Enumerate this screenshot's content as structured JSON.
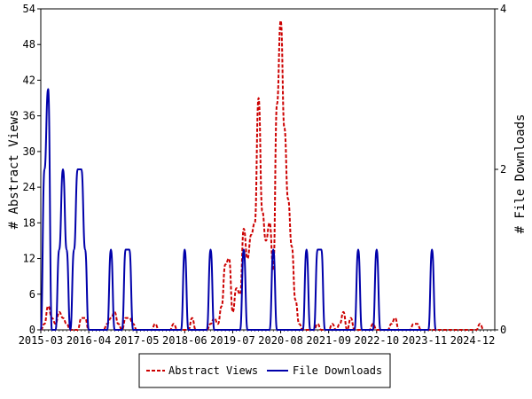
{
  "chart_data": {
    "type": "line",
    "y_left": {
      "label": "# Abstract Views",
      "min": 0,
      "max": 54,
      "ticks": [
        0,
        6,
        12,
        18,
        24,
        30,
        36,
        42,
        48,
        54
      ]
    },
    "y_right": {
      "label": "# File Downloads",
      "min": 0,
      "max": 4,
      "ticks": [
        0,
        2,
        4
      ]
    },
    "x_axis": {
      "start": "2015-03",
      "end": "2025-06",
      "tick_labels": [
        "2015-03",
        "2016-04",
        "2017-05",
        "2018-06",
        "2019-07",
        "2020-08",
        "2021-09",
        "2022-10",
        "2023-11",
        "2024-12"
      ]
    },
    "legend_position": "bottom",
    "series": [
      {
        "name": "Abstract Views",
        "axis": "left",
        "color": "#cc0000",
        "dash": true,
        "points": [
          [
            "2015-03",
            0
          ],
          [
            "2015-04",
            1
          ],
          [
            "2015-05",
            4
          ],
          [
            "2015-06",
            2
          ],
          [
            "2015-07",
            1
          ],
          [
            "2015-08",
            3
          ],
          [
            "2015-09",
            2
          ],
          [
            "2015-10",
            1
          ],
          [
            "2015-11",
            0
          ],
          [
            "2016-01",
            0
          ],
          [
            "2016-02",
            2
          ],
          [
            "2016-03",
            2
          ],
          [
            "2016-04",
            0
          ],
          [
            "2016-05",
            0
          ],
          [
            "2016-08",
            0
          ],
          [
            "2016-09",
            1
          ],
          [
            "2016-10",
            2
          ],
          [
            "2016-11",
            3
          ],
          [
            "2016-12",
            1
          ],
          [
            "2017-01",
            0
          ],
          [
            "2017-02",
            2
          ],
          [
            "2017-03",
            2
          ],
          [
            "2017-04",
            1
          ],
          [
            "2017-05",
            0
          ],
          [
            "2017-09",
            0
          ],
          [
            "2017-10",
            1
          ],
          [
            "2017-11",
            0
          ],
          [
            "2018-02",
            0
          ],
          [
            "2018-03",
            1
          ],
          [
            "2018-04",
            0
          ],
          [
            "2018-07",
            0
          ],
          [
            "2018-08",
            2
          ],
          [
            "2018-09",
            0
          ],
          [
            "2018-12",
            0
          ],
          [
            "2019-01",
            1
          ],
          [
            "2019-02",
            2
          ],
          [
            "2019-03",
            1
          ],
          [
            "2019-04",
            4
          ],
          [
            "2019-05",
            11
          ],
          [
            "2019-06",
            12
          ],
          [
            "2019-07",
            3
          ],
          [
            "2019-08",
            7
          ],
          [
            "2019-09",
            6
          ],
          [
            "2019-10",
            17
          ],
          [
            "2019-11",
            12
          ],
          [
            "2019-12",
            16
          ],
          [
            "2020-01",
            18
          ],
          [
            "2020-02",
            39
          ],
          [
            "2020-03",
            20
          ],
          [
            "2020-04",
            15
          ],
          [
            "2020-05",
            18
          ],
          [
            "2020-06",
            10
          ],
          [
            "2020-07",
            38
          ],
          [
            "2020-08",
            52
          ],
          [
            "2020-09",
            34
          ],
          [
            "2020-10",
            22
          ],
          [
            "2020-11",
            14
          ],
          [
            "2020-12",
            5
          ],
          [
            "2021-01",
            1
          ],
          [
            "2021-02",
            0
          ],
          [
            "2021-05",
            0
          ],
          [
            "2021-06",
            1
          ],
          [
            "2021-07",
            0
          ],
          [
            "2021-09",
            0
          ],
          [
            "2021-10",
            1
          ],
          [
            "2021-11",
            0
          ],
          [
            "2021-12",
            1
          ],
          [
            "2022-01",
            3
          ],
          [
            "2022-02",
            0
          ],
          [
            "2022-03",
            2
          ],
          [
            "2022-04",
            0
          ],
          [
            "2022-08",
            0
          ],
          [
            "2022-09",
            1
          ],
          [
            "2022-10",
            0
          ],
          [
            "2023-01",
            0
          ],
          [
            "2023-02",
            1
          ],
          [
            "2023-03",
            2
          ],
          [
            "2023-04",
            0
          ],
          [
            "2023-07",
            0
          ],
          [
            "2023-08",
            1
          ],
          [
            "2023-09",
            1
          ],
          [
            "2023-10",
            0
          ],
          [
            "2025-01",
            0
          ],
          [
            "2025-02",
            1
          ],
          [
            "2025-03",
            0
          ]
        ]
      },
      {
        "name": "File Downloads",
        "axis": "right",
        "color": "#0000aa",
        "dash": false,
        "points": [
          [
            "2015-03",
            0
          ],
          [
            "2015-04",
            2
          ],
          [
            "2015-05",
            3
          ],
          [
            "2015-06",
            0
          ],
          [
            "2015-07",
            0
          ],
          [
            "2015-08",
            1
          ],
          [
            "2015-09",
            2
          ],
          [
            "2015-10",
            1
          ],
          [
            "2015-11",
            0
          ],
          [
            "2015-12",
            1
          ],
          [
            "2016-01",
            2
          ],
          [
            "2016-02",
            2
          ],
          [
            "2016-03",
            1
          ],
          [
            "2016-04",
            0
          ],
          [
            "2016-09",
            0
          ],
          [
            "2016-10",
            1
          ],
          [
            "2016-11",
            0
          ],
          [
            "2017-01",
            0
          ],
          [
            "2017-02",
            1
          ],
          [
            "2017-03",
            1
          ],
          [
            "2017-04",
            0
          ],
          [
            "2018-05",
            0
          ],
          [
            "2018-06",
            1
          ],
          [
            "2018-07",
            0
          ],
          [
            "2018-12",
            0
          ],
          [
            "2019-01",
            1
          ],
          [
            "2019-02",
            0
          ],
          [
            "2019-09",
            0
          ],
          [
            "2019-10",
            1
          ],
          [
            "2019-11",
            0
          ],
          [
            "2020-05",
            0
          ],
          [
            "2020-06",
            1
          ],
          [
            "2020-07",
            0
          ],
          [
            "2021-02",
            0
          ],
          [
            "2021-03",
            1
          ],
          [
            "2021-04",
            0
          ],
          [
            "2021-05",
            0
          ],
          [
            "2021-06",
            1
          ],
          [
            "2021-07",
            1
          ],
          [
            "2021-08",
            0
          ],
          [
            "2022-04",
            0
          ],
          [
            "2022-05",
            1
          ],
          [
            "2022-06",
            0
          ],
          [
            "2022-09",
            0
          ],
          [
            "2022-10",
            1
          ],
          [
            "2022-11",
            0
          ],
          [
            "2023-12",
            0
          ],
          [
            "2024-01",
            1
          ],
          [
            "2024-02",
            0
          ]
        ]
      }
    ]
  }
}
